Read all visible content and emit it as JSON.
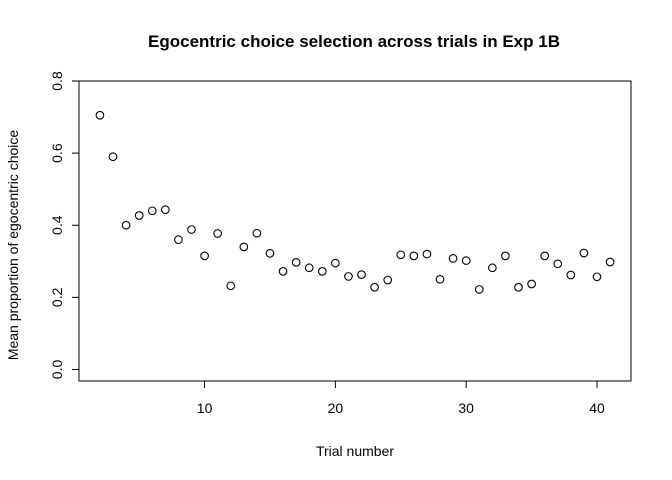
{
  "chart_data": {
    "type": "scatter",
    "title": "Egocentric choice selection across trials in Exp 1B",
    "xlabel": "Trial number",
    "ylabel": "Mean proportion of egocentric choice",
    "xlim": [
      0.4,
      42.6
    ],
    "ylim": [
      -0.032,
      0.8
    ],
    "xticks": [
      10,
      20,
      30,
      40
    ],
    "yticks": [
      0.0,
      0.2,
      0.4,
      0.6,
      0.8
    ],
    "xtick_labels": [
      "10",
      "20",
      "30",
      "40"
    ],
    "ytick_labels": [
      "0.0",
      "0.2",
      "0.4",
      "0.6",
      "0.8"
    ],
    "grid": false,
    "marker": "open-circle",
    "x": [
      2,
      3,
      4,
      5,
      6,
      7,
      8,
      9,
      10,
      11,
      12,
      13,
      14,
      15,
      16,
      17,
      18,
      19,
      20,
      21,
      22,
      23,
      24,
      25,
      26,
      27,
      28,
      29,
      30,
      31,
      32,
      33,
      34,
      35,
      36,
      37,
      38,
      39,
      40,
      41
    ],
    "y": [
      0.705,
      0.59,
      0.4,
      0.427,
      0.44,
      0.443,
      0.36,
      0.388,
      0.315,
      0.377,
      0.232,
      0.34,
      0.378,
      0.322,
      0.272,
      0.297,
      0.282,
      0.272,
      0.295,
      0.258,
      0.263,
      0.228,
      0.248,
      0.318,
      0.315,
      0.32,
      0.25,
      0.308,
      0.302,
      0.222,
      0.282,
      0.315,
      0.228,
      0.237,
      0.315,
      0.293,
      0.262,
      0.323,
      0.257,
      0.298
    ]
  }
}
